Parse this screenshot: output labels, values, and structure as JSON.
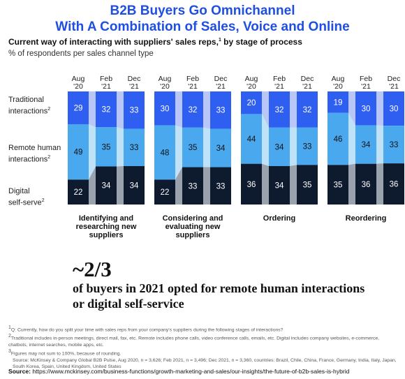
{
  "header": {
    "headline_line1": "B2B Buyers Go Omnichannel",
    "headline_line2": "With A Combination of Sales, Voice and Online",
    "subtitle": "Current way of interacting with suppliers' sales reps,",
    "subtitle_sup": "1",
    "subtitle_tail": " by stage of process",
    "units": "% of respondents per sales channel type"
  },
  "row_labels": [
    {
      "line1": "Traditional",
      "line2": "interactions",
      "sup": "2"
    },
    {
      "line1": "Remote human",
      "line2": "interactions",
      "sup": "2"
    },
    {
      "line1": "Digital",
      "line2": "self-serve",
      "sup": "2"
    }
  ],
  "colors": {
    "traditional": "#2f5ff0",
    "traditional_light": "#b8c6f8",
    "remote": "#4aa8ef",
    "remote_light": "#bfe2f8",
    "digital": "#0e1a2e",
    "digital_light": "#9aa3ad"
  },
  "chart_data": {
    "type": "bar",
    "stacked": true,
    "categories": [
      "Aug '20",
      "Feb '21",
      "Dec '21"
    ],
    "period_labels": [
      [
        "Aug",
        "'20"
      ],
      [
        "Feb",
        "'21"
      ],
      [
        "Dec",
        "'21"
      ]
    ],
    "groups": [
      {
        "title": [
          "Identifying and",
          "researching new",
          "suppliers"
        ],
        "series": [
          {
            "name": "Traditional interactions",
            "values": [
              29,
              32,
              33
            ]
          },
          {
            "name": "Remote human interactions",
            "values": [
              49,
              35,
              33
            ]
          },
          {
            "name": "Digital self-serve",
            "values": [
              22,
              34,
              34
            ]
          }
        ]
      },
      {
        "title": [
          "Considering and",
          "evaluating new",
          "suppliers"
        ],
        "series": [
          {
            "name": "Traditional interactions",
            "values": [
              30,
              32,
              33
            ]
          },
          {
            "name": "Remote human interactions",
            "values": [
              48,
              35,
              34
            ]
          },
          {
            "name": "Digital self-serve",
            "values": [
              22,
              33,
              33
            ]
          }
        ]
      },
      {
        "title": [
          "Ordering"
        ],
        "series": [
          {
            "name": "Traditional interactions",
            "values": [
              20,
              32,
              32
            ]
          },
          {
            "name": "Remote human interactions",
            "values": [
              44,
              34,
              33
            ]
          },
          {
            "name": "Digital self-serve",
            "values": [
              36,
              34,
              35
            ]
          }
        ]
      },
      {
        "title": [
          "Reordering"
        ],
        "series": [
          {
            "name": "Traditional interactions",
            "values": [
              19,
              30,
              30
            ]
          },
          {
            "name": "Remote human interactions",
            "values": [
              46,
              34,
              33
            ]
          },
          {
            "name": "Digital self-serve",
            "values": [
              35,
              36,
              36
            ]
          }
        ]
      }
    ],
    "ylim": [
      0,
      100
    ]
  },
  "callout": {
    "stat": "~2/3",
    "text": "of buyers in 2021 opted for remote human interactions or digital self-service"
  },
  "notes": [
    {
      "sup": "1",
      "text": "Q: Currently, how do you split your time with sales reps from your company's suppliers during the following stages of interactions?"
    },
    {
      "sup": "2",
      "text": "Traditional includes in-person meetings, direct mail, fax, etc. Remote includes phone calls, video conference calls, emails, etc. Digital includes company websites, e-commerce, chatbots, internet searches, mobile apps, etc."
    },
    {
      "sup": "3",
      "text": "Figures may not sum to 100%, because of rounding."
    },
    {
      "sup": "",
      "text": "Source: McKinsey & Company Global B2B Pulse, Aug 2020, n = 3,626; Feb 2021, n = 3,496; Dec 2021, n = 3,360, countries: Brazil, Chile, China, France, Germany, India, Italy, Japan, South Korea, Spain, United Kingdom, United States"
    }
  ],
  "source": {
    "label": "Source: ",
    "url": "https://www.mckinsey.com/business-functions/growth-marketing-and-sales/our-insights/the-future-of-b2b-sales-is-hybrid"
  }
}
